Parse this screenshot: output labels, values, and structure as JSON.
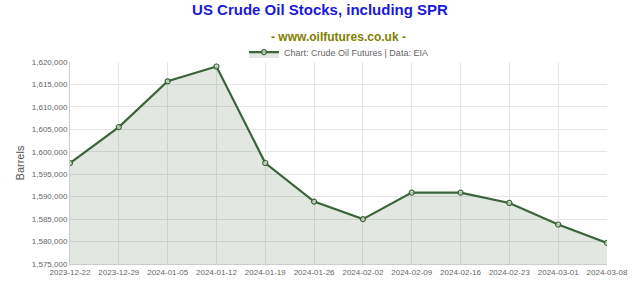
{
  "chart_data": {
    "type": "line",
    "title": "US Crude Oil Stocks, including SPR",
    "subtitle": "- www.oilfutures.co.uk -",
    "y_label": "Barrels",
    "categories": [
      "2023-12-22",
      "2023-12-29",
      "2024-01-05",
      "2024-01-12",
      "2024-01-19",
      "2024-01-26",
      "2024-02-02",
      "2024-02-09",
      "2024-02-16",
      "2024-02-23",
      "2024-03-01",
      "2024-03-08"
    ],
    "series": [
      {
        "name": "Chart: Crude Oil Futures | Data: EIA",
        "color": "#3b6339",
        "marker": "circle",
        "values": [
          1597500,
          1605500,
          1615700,
          1619000,
          1597500,
          1588900,
          1585000,
          1590900,
          1590900,
          1588600,
          1583800,
          1579700
        ]
      }
    ],
    "ylim": [
      1575000,
      1620000
    ],
    "yticks": [
      {
        "value": 1575000,
        "label": "1,575,000"
      },
      {
        "value": 1580000,
        "label": "1,580,000"
      },
      {
        "value": 1585000,
        "label": "1,585,000"
      },
      {
        "value": 1590000,
        "label": "1,590,000"
      },
      {
        "value": 1595000,
        "label": "1,595,000"
      },
      {
        "value": 1600000,
        "label": "1,600,000"
      },
      {
        "value": 1605000,
        "label": "1,605,000"
      },
      {
        "value": 1610000,
        "label": "1,610,000"
      },
      {
        "value": 1615000,
        "label": "1,615,000"
      },
      {
        "value": 1620000,
        "label": "1,620,000"
      }
    ],
    "grid": true,
    "legend": "top"
  }
}
